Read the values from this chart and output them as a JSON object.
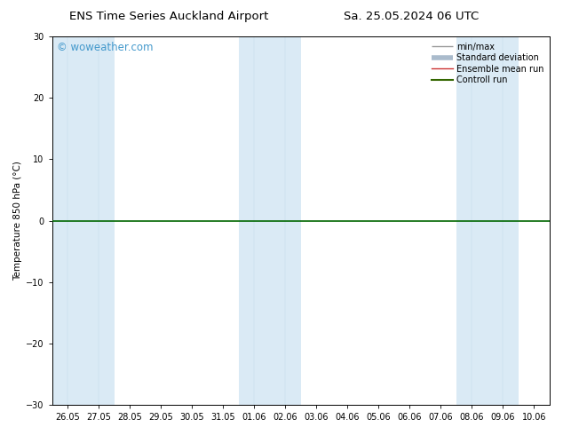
{
  "title_left": "ENS Time Series Auckland Airport",
  "title_right": "Sa. 25.05.2024 06 UTC",
  "ylabel": "Temperature 850 hPa (°C)",
  "ylim": [
    -30,
    30
  ],
  "yticks": [
    -30,
    -20,
    -10,
    0,
    10,
    20,
    30
  ],
  "x_labels": [
    "26.05",
    "27.05",
    "28.05",
    "29.05",
    "30.05",
    "31.05",
    "01.06",
    "02.06",
    "03.06",
    "04.06",
    "05.06",
    "06.06",
    "07.06",
    "08.06",
    "09.06",
    "10.06"
  ],
  "shaded_indices": [
    0,
    1,
    6,
    7,
    13,
    14
  ],
  "shade_color": "#daeaf5",
  "watermark": "© woweather.com",
  "watermark_color": "#4499cc",
  "legend_items": [
    {
      "label": "min/max",
      "color": "#999999",
      "lw": 1.0
    },
    {
      "label": "Standard deviation",
      "color": "#aabbcc",
      "lw": 4.0
    },
    {
      "label": "Ensemble mean run",
      "color": "#cc3333",
      "lw": 1.0
    },
    {
      "label": "Controll run",
      "color": "#336600",
      "lw": 1.5
    }
  ],
  "zero_line_color": "#006600",
  "bg_color": "#ffffff",
  "title_fontsize": 9.5,
  "axis_fontsize": 7,
  "legend_fontsize": 7,
  "watermark_fontsize": 8.5
}
